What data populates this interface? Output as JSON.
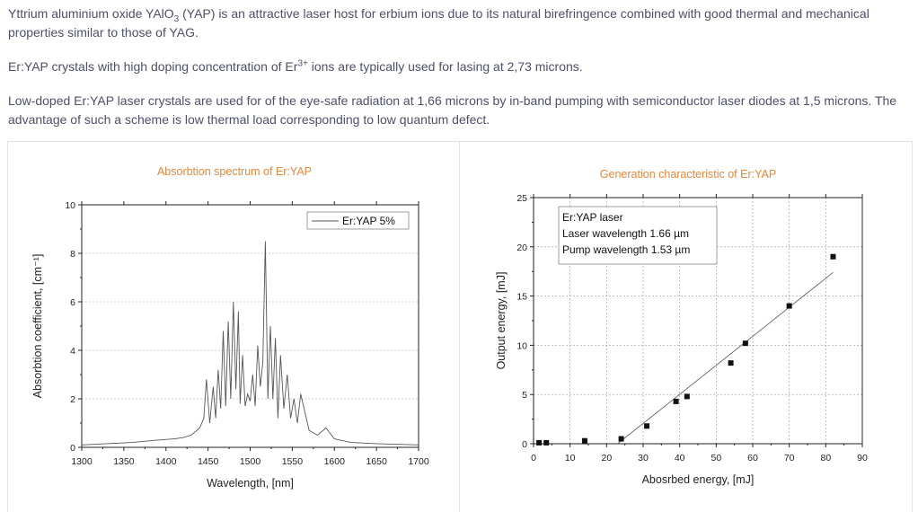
{
  "intro": {
    "p1": "Yttrium aluminium oxide YAlO",
    "p1_sub": "3",
    "p1_rest": " (YAP) is an attractive laser host for erbium ions due to its natural birefringence combined with good thermal and mechanical properties similar to those of YAG.",
    "p2": "Er:YAP crystals with high doping concentration of Er",
    "p2_sup": "3+",
    "p2_rest": " ions are typically used for lasing at 2,73 microns.",
    "p3": "Low-doped Er:YAP laser crystals are used for of the eye-safe radiation at 1,66 microns by in-band pumping with semiconductor laser diodes at 1,5 microns. The advantage of such a scheme is low thermal load corresponding to low quantum defect."
  },
  "chart_data": [
    {
      "type": "line",
      "title": "Absorbtion spectrum of Er:YAP",
      "xlabel": "Wavelength, [nm]",
      "ylabel": "Absorbtion coefficient, [cm⁻¹]",
      "xlim": [
        1300,
        1700
      ],
      "ylim": [
        0,
        10
      ],
      "xticks": [
        "1300",
        "1350",
        "1400",
        "1450",
        "1500",
        "1550",
        "1600",
        "1650",
        "1700"
      ],
      "yticks": [
        "0",
        "2",
        "4",
        "6",
        "8",
        "10"
      ],
      "grid": true,
      "legend": "top-right",
      "series": [
        {
          "name": "Er:YAP 5%",
          "x": [
            1300,
            1330,
            1360,
            1390,
            1410,
            1420,
            1430,
            1440,
            1445,
            1448,
            1452,
            1456,
            1459,
            1462,
            1465,
            1468,
            1471,
            1474,
            1477,
            1480,
            1483,
            1486,
            1488,
            1491,
            1494,
            1497,
            1500,
            1503,
            1506,
            1509,
            1512,
            1515,
            1518,
            1521,
            1524,
            1527,
            1530,
            1533,
            1536,
            1540,
            1544,
            1548,
            1552,
            1556,
            1560,
            1570,
            1580,
            1590,
            1600,
            1620,
            1650,
            1700
          ],
          "y": [
            0.1,
            0.15,
            0.2,
            0.3,
            0.35,
            0.4,
            0.5,
            0.8,
            1.2,
            2.8,
            1.0,
            2.5,
            1.2,
            3.2,
            1.6,
            4.8,
            1.7,
            5.2,
            2.0,
            6.0,
            2.4,
            5.6,
            1.8,
            3.8,
            1.7,
            2.2,
            1.9,
            3.0,
            1.7,
            4.2,
            2.5,
            3.5,
            8.5,
            2.0,
            5.0,
            2.0,
            4.5,
            1.2,
            3.8,
            1.6,
            3.0,
            1.2,
            2.0,
            1.0,
            2.2,
            0.7,
            0.5,
            0.8,
            0.35,
            0.2,
            0.15,
            0.1
          ]
        }
      ]
    },
    {
      "type": "scatter",
      "title": "Generation characteristic of Er:YAP",
      "xlabel": "Abosrbed energy, [mJ]",
      "ylabel": "Output energy, [mJ]",
      "xlim": [
        0,
        90
      ],
      "ylim": [
        0,
        25
      ],
      "xticks": [
        "0",
        "10",
        "20",
        "30",
        "40",
        "50",
        "60",
        "70",
        "80",
        "90"
      ],
      "yticks": [
        "0",
        "5",
        "10",
        "15",
        "20",
        "25"
      ],
      "grid": true,
      "legend": "top-left",
      "legend_lines": [
        "Er:YAP laser",
        "Laser wavelength 1.66 µm",
        "Pump wavelength 1.53 µm"
      ],
      "points": {
        "x": [
          1.5,
          3.5,
          14,
          24,
          31,
          39,
          42,
          54,
          58,
          70,
          82
        ],
        "y": [
          0.1,
          0.1,
          0.3,
          0.5,
          1.8,
          4.3,
          4.8,
          8.2,
          10.2,
          14.0,
          19.0
        ]
      },
      "fit_line": {
        "x": [
          23,
          82
        ],
        "y": [
          0.0,
          17.4
        ]
      }
    }
  ]
}
